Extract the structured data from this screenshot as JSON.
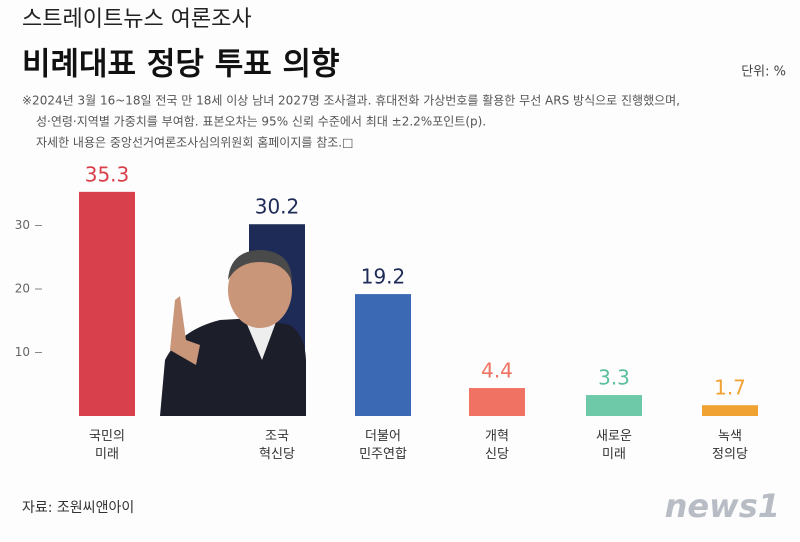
{
  "header": "스트레이트뉴스 여론조사",
  "unit": "단위: %",
  "notes": [
    "※2024년 3월 16~18일 전국 만 18세 이상 남녀 2027명 조사결과. 휴대전화 가상번호를 활용한 무선 ARS 방식으로 진행했으며,",
    "성·연령·지역별 가중치를 부여함. 표본오차는 95% 신뢰 수준에서 최대 ±2.2%포인트(p).",
    "자세한 내용은 중앙선거여론조사심의위원회 홈페이지를 참조.□"
  ],
  "source": "자료: 조원씨앤아이",
  "logo": "news1",
  "chart_data": {
    "type": "bar",
    "title": "비례대표 정당 투표 의향",
    "categories": [
      "국민의\n미래",
      "조국\n혁신당",
      "더불어\n민주연합",
      "개혁\n신당",
      "새로운\n미래",
      "녹색\n정의당"
    ],
    "values": [
      35.3,
      30.2,
      19.2,
      4.4,
      3.3,
      1.7
    ],
    "colors": [
      "#d8414b",
      "#1e2b57",
      "#3c69b3",
      "#ef7262",
      "#6ec9a9",
      "#f0a232"
    ],
    "label_colors": [
      "#d8414b",
      "#1e2b57",
      "#1e2b57",
      "#ef7262",
      "#5cbf9c",
      "#f0a232"
    ],
    "ylim": [
      0,
      40
    ],
    "yticks": [
      10,
      20,
      30
    ]
  }
}
